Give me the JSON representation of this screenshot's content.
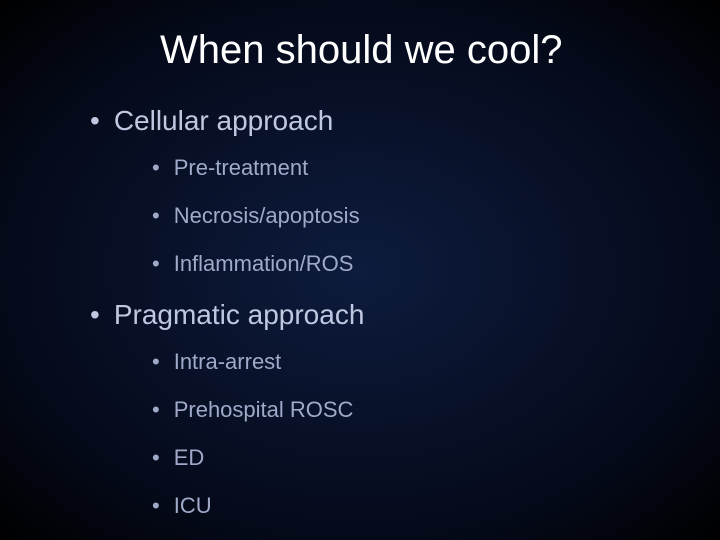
{
  "colors": {
    "background_gradient_inner": "#0d1b3d",
    "background_gradient_mid": "#050a1a",
    "background_gradient_outer": "#000000",
    "title_color": "#ffffff",
    "level1_color": "#bfc8e0",
    "level2_color": "#9fa9c8"
  },
  "typography": {
    "font_family": "Arial, Helvetica, sans-serif",
    "title_fontsize": 40,
    "level1_fontsize": 28,
    "level2_fontsize": 22
  },
  "slide": {
    "title": "When should we cool?",
    "sections": [
      {
        "label": "Cellular approach",
        "items": [
          "Pre-treatment",
          "Necrosis/apoptosis",
          "Inflammation/ROS"
        ]
      },
      {
        "label": "Pragmatic approach",
        "items": [
          "Intra-arrest",
          "Prehospital ROSC",
          "ED",
          "ICU"
        ]
      }
    ]
  },
  "bullet_glyph": "•"
}
